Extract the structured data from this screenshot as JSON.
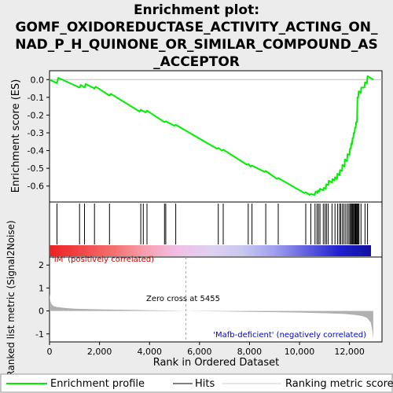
{
  "title_lines": [
    "Enrichment plot:",
    "GOMF_OXIDOREDUCTASE_ACTIVITY_ACTING_ON_",
    "NAD_P_H_QUINONE_OR_SIMILAR_COMPOUND_AS",
    "_ACCEPTOR"
  ],
  "colors": {
    "es_line": "#00ee00",
    "positive_label": "#cc0000",
    "negative_label": "#0000cc",
    "metric_fill": "#b0b0b0",
    "zero_line": "#aaaaaa"
  },
  "chart_data": [
    {
      "type": "line",
      "panel": "enrichment",
      "ylabel": "Enrichment score (ES)",
      "xlim": [
        0,
        13300
      ],
      "ylim": [
        -0.69,
        0.05
      ],
      "yticks": [
        0.0,
        -0.1,
        -0.2,
        -0.3,
        -0.4,
        -0.5,
        -0.6
      ],
      "ytick_labels": [
        "0.0",
        "-0.1",
        "-0.2",
        "-0.3",
        "-0.4",
        "-0.5",
        "-0.6"
      ],
      "series": [
        {
          "name": "Enrichment profile",
          "x": [
            0,
            300,
            350,
            1200,
            1250,
            1400,
            1450,
            1800,
            1850,
            2400,
            2450,
            3600,
            3650,
            3850,
            3900,
            4600,
            4650,
            5000,
            5050,
            6700,
            6750,
            6900,
            6950,
            7900,
            7950,
            8050,
            8100,
            8600,
            8650,
            9100,
            9150,
            10200,
            10250,
            10400,
            10450,
            10600,
            10650,
            10720,
            10740,
            10800,
            10820,
            10950,
            10970,
            11050,
            11070,
            11150,
            11170,
            11300,
            11320,
            11400,
            11420,
            11500,
            11520,
            11600,
            11620,
            11700,
            11720,
            11800,
            11820,
            11900,
            11920,
            12000,
            12020,
            12050,
            12070,
            12100,
            12120,
            12150,
            12170,
            12200,
            12220,
            12250,
            12270,
            12300,
            12320,
            12350,
            12370,
            12450,
            12470,
            12600,
            12620,
            12700,
            12720,
            12950
          ],
          "y": [
            0.0,
            -0.02,
            0.01,
            -0.045,
            -0.03,
            -0.045,
            -0.025,
            -0.05,
            -0.04,
            -0.09,
            -0.08,
            -0.18,
            -0.17,
            -0.185,
            -0.175,
            -0.24,
            -0.235,
            -0.26,
            -0.255,
            -0.39,
            -0.385,
            -0.4,
            -0.395,
            -0.48,
            -0.475,
            -0.49,
            -0.485,
            -0.52,
            -0.515,
            -0.56,
            -0.555,
            -0.64,
            -0.635,
            -0.65,
            -0.645,
            -0.65,
            -0.63,
            -0.64,
            -0.625,
            -0.63,
            -0.615,
            -0.625,
            -0.61,
            -0.615,
            -0.59,
            -0.595,
            -0.57,
            -0.58,
            -0.56,
            -0.57,
            -0.55,
            -0.56,
            -0.53,
            -0.54,
            -0.51,
            -0.515,
            -0.48,
            -0.49,
            -0.45,
            -0.46,
            -0.42,
            -0.425,
            -0.39,
            -0.39,
            -0.36,
            -0.365,
            -0.33,
            -0.33,
            -0.3,
            -0.3,
            -0.27,
            -0.27,
            -0.24,
            -0.24,
            -0.1,
            -0.1,
            -0.065,
            -0.075,
            -0.045,
            -0.045,
            -0.015,
            -0.02,
            0.02,
            0.0
          ]
        }
      ]
    },
    {
      "type": "hits",
      "panel": "hits",
      "name": "Hits",
      "positions": [
        300,
        1200,
        1400,
        1800,
        2400,
        3650,
        3750,
        3900,
        4600,
        4650,
        5050,
        6750,
        6950,
        7950,
        8100,
        8650,
        9150,
        10250,
        10450,
        10620,
        10700,
        10760,
        10820,
        10950,
        11020,
        11080,
        11150,
        11300,
        11420,
        11520,
        11600,
        11650,
        11720,
        11780,
        11850,
        11920,
        11980,
        12030,
        12070,
        12100,
        12130,
        12160,
        12200,
        12230,
        12260,
        12290,
        12320,
        12350,
        12380,
        12460,
        12620,
        12720
      ],
      "gradient": [
        "#ee2020",
        "#f04848",
        "#f47070",
        "#f8a0b0",
        "#f0c0e8",
        "#e0d0f0",
        "#c8c8f0",
        "#a0a0ee",
        "#6060e0",
        "#2020d0",
        "#1010a0"
      ]
    },
    {
      "type": "area",
      "panel": "ranked_metric",
      "ylabel": "Ranked list metric (Signal2Noise)",
      "xlabel": "Rank in Ordered Dataset",
      "xlim": [
        0,
        13300
      ],
      "ylim": [
        -1.35,
        2.35
      ],
      "yticks": [
        2,
        1,
        0,
        -1
      ],
      "ytick_labels": [
        "2",
        "1",
        "0",
        "-1"
      ],
      "xticks": [
        0,
        2000,
        4000,
        6000,
        8000,
        10000,
        12000
      ],
      "xtick_labels": [
        "0",
        "2,000",
        "4,000",
        "6,000",
        "8,000",
        "10,000",
        "12,000"
      ],
      "x": [
        0,
        30,
        80,
        150,
        300,
        600,
        1000,
        2000,
        3000,
        4000,
        5000,
        5455,
        6000,
        7000,
        8000,
        9000,
        10000,
        11000,
        11800,
        12200,
        12500,
        12700,
        12850,
        12920,
        12950
      ],
      "values": [
        0.75,
        0.45,
        0.3,
        0.22,
        0.17,
        0.13,
        0.1,
        0.07,
        0.05,
        0.03,
        0.01,
        0.0,
        -0.01,
        -0.02,
        -0.04,
        -0.05,
        -0.07,
        -0.1,
        -0.13,
        -0.17,
        -0.22,
        -0.3,
        -0.5,
        -0.9,
        -1.25
      ],
      "zero_cross_x": 5455,
      "annotations": {
        "zero_cross": "Zero cross at 5455",
        "positive": "'IM' (positively correlated)",
        "negative": "'Mafb-deficient' (negatively correlated)"
      }
    }
  ],
  "legend": {
    "items": [
      "Enrichment profile",
      "Hits",
      "Ranking metric scores"
    ]
  }
}
